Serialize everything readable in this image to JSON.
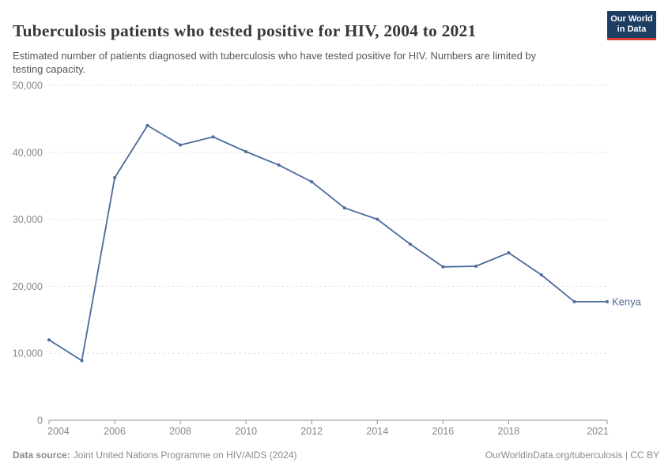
{
  "header": {
    "logo": {
      "line1": "Our World",
      "line2": "in Data"
    }
  },
  "chart_data": {
    "type": "line",
    "title": "Tuberculosis patients who tested positive for HIV, 2004 to 2021",
    "subtitle": "Estimated number of patients diagnosed with tuberculosis who have tested positive for HIV. Numbers are limited by testing capacity.",
    "xlabel": "",
    "ylabel": "",
    "xlim": [
      2004,
      2021
    ],
    "ylim": [
      0,
      50000
    ],
    "grid": "horizontal-dashed",
    "legend_position": "end-of-line-label",
    "x_ticks": [
      2004,
      2006,
      2008,
      2010,
      2012,
      2014,
      2016,
      2018,
      2021
    ],
    "y_ticks": [
      0,
      10000,
      20000,
      30000,
      40000,
      50000
    ],
    "y_tick_labels": [
      "0",
      "10,000",
      "20,000",
      "30,000",
      "40,000",
      "50,000"
    ],
    "series": [
      {
        "name": "Kenya",
        "color": "#4C6A9C",
        "x": [
          2004,
          2005,
          2006,
          2007,
          2008,
          2009,
          2010,
          2011,
          2012,
          2013,
          2014,
          2015,
          2016,
          2017,
          2018,
          2019,
          2020,
          2021
        ],
        "values": [
          12000,
          8900,
          36200,
          44000,
          41100,
          42300,
          40100,
          38100,
          35600,
          31700,
          30000,
          26300,
          22900,
          23000,
          25000,
          21700,
          17700,
          17700
        ]
      }
    ]
  },
  "footer": {
    "datasource_label": "Data source:",
    "datasource_text": "Joint United Nations Programme on HIV/AIDS (2024)",
    "rights": "OurWorldinData.org/tuberculosis | CC BY"
  },
  "colors": {
    "line": "#4C6A9C",
    "grid": "#e2e2e2",
    "axis": "#8f8f8f",
    "tick_text": "#878787",
    "logo_bg": "#1d3d63",
    "logo_accent": "#dc3e32"
  }
}
